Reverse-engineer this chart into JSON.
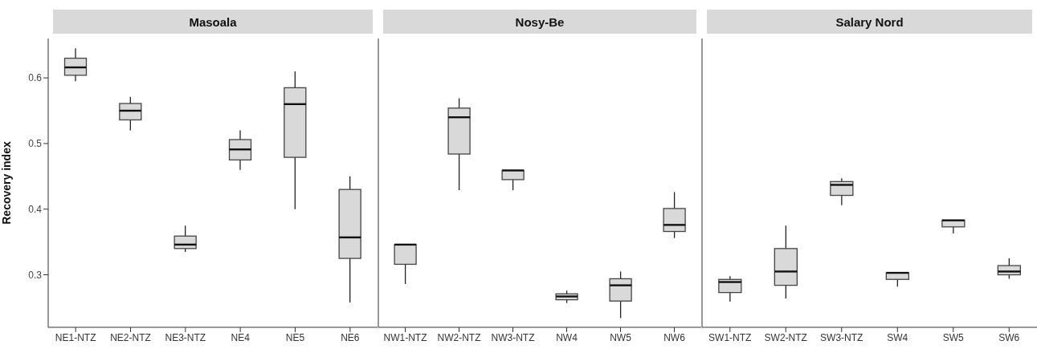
{
  "chart_data": [
    {
      "type": "box",
      "title": "Masoala",
      "ylabel": "Recovery index",
      "color": "#d9d9d9",
      "ylim": [
        0.22,
        0.66
      ],
      "yticks": [
        0.3,
        0.4,
        0.5,
        0.6
      ],
      "categories": [
        "NE1-NTZ",
        "NE2-NTZ",
        "NE3-NTZ",
        "NE4",
        "NE5",
        "NE6"
      ],
      "boxes": [
        {
          "low": 0.595,
          "q1": 0.604,
          "median": 0.616,
          "q3": 0.63,
          "high": 0.645
        },
        {
          "low": 0.52,
          "q1": 0.536,
          "median": 0.55,
          "q3": 0.561,
          "high": 0.571
        },
        {
          "low": 0.335,
          "q1": 0.34,
          "median": 0.346,
          "q3": 0.359,
          "high": 0.375
        },
        {
          "low": 0.46,
          "q1": 0.475,
          "median": 0.491,
          "q3": 0.506,
          "high": 0.52
        },
        {
          "low": 0.4,
          "q1": 0.479,
          "median": 0.56,
          "q3": 0.585,
          "high": 0.61
        },
        {
          "low": 0.258,
          "q1": 0.325,
          "median": 0.357,
          "q3": 0.43,
          "high": 0.45
        }
      ]
    },
    {
      "type": "box",
      "title": "Nosy-Be",
      "color": "#d9d9d9",
      "ylim": [
        0.22,
        0.66
      ],
      "yticks": [
        0.3,
        0.4,
        0.5,
        0.6
      ],
      "tick_labels": "x",
      "categories": [
        "NW1-NTZ",
        "NW2-NTZ",
        "NW3-NTZ",
        "NW4",
        "NW5",
        "NW6"
      ],
      "boxes": [
        {
          "low": 0.286,
          "q1": 0.316,
          "median": 0.346,
          "q3": 0.346,
          "high": 0.346
        },
        {
          "low": 0.429,
          "q1": 0.484,
          "median": 0.54,
          "q3": 0.554,
          "high": 0.569
        },
        {
          "low": 0.429,
          "q1": 0.445,
          "median": 0.459,
          "q3": 0.459,
          "high": 0.459
        },
        {
          "low": 0.257,
          "q1": 0.262,
          "median": 0.267,
          "q3": 0.271,
          "high": 0.276
        },
        {
          "low": 0.234,
          "q1": 0.26,
          "median": 0.284,
          "q3": 0.294,
          "high": 0.305
        },
        {
          "low": 0.356,
          "q1": 0.366,
          "median": 0.376,
          "q3": 0.401,
          "high": 0.426
        }
      ]
    },
    {
      "type": "box",
      "title": "Salary Nord",
      "color": "#d9d9d9",
      "ylim": [
        0.22,
        0.66
      ],
      "yticks": [
        0.3,
        0.4,
        0.5,
        0.6
      ],
      "tick_labels": "x",
      "categories": [
        "SW1-NTZ",
        "SW2-NTZ",
        "SW3-NTZ",
        "SW4",
        "SW5",
        "SW6"
      ],
      "boxes": [
        {
          "low": 0.259,
          "q1": 0.273,
          "median": 0.289,
          "q3": 0.293,
          "high": 0.298
        },
        {
          "low": 0.264,
          "q1": 0.284,
          "median": 0.305,
          "q3": 0.34,
          "high": 0.375
        },
        {
          "low": 0.406,
          "q1": 0.421,
          "median": 0.437,
          "q3": 0.442,
          "high": 0.447
        },
        {
          "low": 0.282,
          "q1": 0.293,
          "median": 0.303,
          "q3": 0.303,
          "high": 0.303
        },
        {
          "low": 0.363,
          "q1": 0.373,
          "median": 0.383,
          "q3": 0.383,
          "high": 0.383
        },
        {
          "low": 0.294,
          "q1": 0.3,
          "median": 0.305,
          "q3": 0.314,
          "high": 0.325
        }
      ]
    }
  ]
}
